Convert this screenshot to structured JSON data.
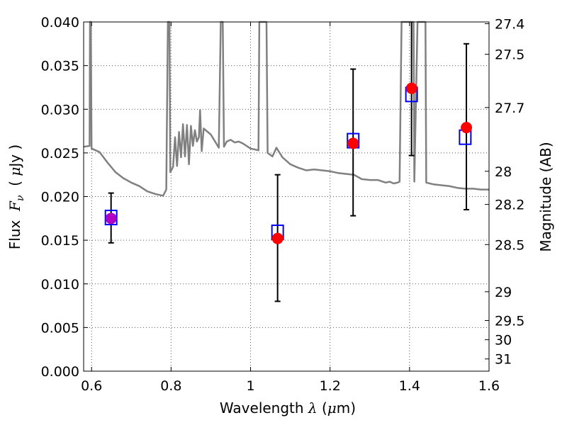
{
  "chart_data": {
    "type": "scatter",
    "xlabel": {
      "prefix": "Wavelength  ",
      "symbol": "λ",
      "unit_open": " (",
      "unit_symbol": "μ",
      "unit_close": "m)"
    },
    "ylabel": {
      "prefix": "Flux  ",
      "symbol": "F",
      "subscript": "ν",
      "unit_open": "  ( ",
      "unit_symbol": "μ",
      "unit_close": "Jy )"
    },
    "y2label": "Magnitude (AB)",
    "xlim": [
      0.58,
      1.6
    ],
    "ylim": [
      0.0,
      0.04
    ],
    "grid": true,
    "x_ticks": [
      {
        "value": 0.6,
        "label": "0.6"
      },
      {
        "value": 0.8,
        "label": "0.8"
      },
      {
        "value": 1.0,
        "label": "1"
      },
      {
        "value": 1.2,
        "label": "1.2"
      },
      {
        "value": 1.4,
        "label": "1.4"
      },
      {
        "value": 1.6,
        "label": "1.6"
      }
    ],
    "y_ticks": [
      {
        "value": 0.0,
        "label": "0.000"
      },
      {
        "value": 0.005,
        "label": "0.005"
      },
      {
        "value": 0.01,
        "label": "0.010"
      },
      {
        "value": 0.015,
        "label": "0.015"
      },
      {
        "value": 0.02,
        "label": "0.020"
      },
      {
        "value": 0.025,
        "label": "0.025"
      },
      {
        "value": 0.03,
        "label": "0.030"
      },
      {
        "value": 0.035,
        "label": "0.035"
      },
      {
        "value": 0.04,
        "label": "0.040"
      }
    ],
    "y2_ticks": [
      {
        "flux": 0.0398,
        "label": "27.4"
      },
      {
        "flux": 0.0363,
        "label": "27.5"
      },
      {
        "flux": 0.0302,
        "label": "27.7"
      },
      {
        "flux": 0.0229,
        "label": "28"
      },
      {
        "flux": 0.0191,
        "label": "28.2"
      },
      {
        "flux": 0.0145,
        "label": "28.5"
      },
      {
        "flux": 0.0091,
        "label": "29"
      },
      {
        "flux": 0.0058,
        "label": "29.5"
      },
      {
        "flux": 0.0036,
        "label": "30"
      },
      {
        "flux": 0.0014,
        "label": "31"
      }
    ],
    "colors": {
      "model": "#808080",
      "observed": "#ff0000",
      "model_flux": "#0000ff",
      "overlap": "#b000c0",
      "error": "#000000"
    },
    "series": [
      {
        "kind": "model_spectrum",
        "points": [
          [
            0.58,
            0.0257
          ],
          [
            0.595,
            0.0258
          ],
          [
            0.596,
            0.04
          ],
          [
            0.598,
            0.04
          ],
          [
            0.6,
            0.0255
          ],
          [
            0.62,
            0.0251
          ],
          [
            0.64,
            0.0239
          ],
          [
            0.66,
            0.0228
          ],
          [
            0.68,
            0.0221
          ],
          [
            0.7,
            0.0216
          ],
          [
            0.72,
            0.0212
          ],
          [
            0.74,
            0.0206
          ],
          [
            0.76,
            0.0203
          ],
          [
            0.78,
            0.0201
          ],
          [
            0.788,
            0.0208
          ],
          [
            0.792,
            0.04
          ],
          [
            0.796,
            0.04
          ],
          [
            0.798,
            0.0228
          ],
          [
            0.805,
            0.0234
          ],
          [
            0.81,
            0.0268
          ],
          [
            0.815,
            0.0235
          ],
          [
            0.82,
            0.0274
          ],
          [
            0.825,
            0.0245
          ],
          [
            0.83,
            0.0283
          ],
          [
            0.835,
            0.0246
          ],
          [
            0.84,
            0.0282
          ],
          [
            0.845,
            0.0237
          ],
          [
            0.85,
            0.0281
          ],
          [
            0.855,
            0.0258
          ],
          [
            0.86,
            0.0276
          ],
          [
            0.865,
            0.0263
          ],
          [
            0.87,
            0.0268
          ],
          [
            0.873,
            0.0299
          ],
          [
            0.877,
            0.0252
          ],
          [
            0.882,
            0.0278
          ],
          [
            0.9,
            0.0271
          ],
          [
            0.92,
            0.0256
          ],
          [
            0.925,
            0.04
          ],
          [
            0.93,
            0.04
          ],
          [
            0.933,
            0.0257
          ],
          [
            0.94,
            0.0263
          ],
          [
            0.95,
            0.0265
          ],
          [
            0.96,
            0.0262
          ],
          [
            0.97,
            0.0263
          ],
          [
            0.98,
            0.0261
          ],
          [
            0.99,
            0.0258
          ],
          [
            1.0,
            0.0255
          ],
          [
            1.02,
            0.0253
          ],
          [
            1.022,
            0.04
          ],
          [
            1.04,
            0.04
          ],
          [
            1.043,
            0.025
          ],
          [
            1.055,
            0.0246
          ],
          [
            1.065,
            0.0256
          ],
          [
            1.08,
            0.0245
          ],
          [
            1.1,
            0.0237
          ],
          [
            1.12,
            0.0233
          ],
          [
            1.14,
            0.023
          ],
          [
            1.16,
            0.0231
          ],
          [
            1.18,
            0.023
          ],
          [
            1.2,
            0.0229
          ],
          [
            1.22,
            0.0227
          ],
          [
            1.24,
            0.0226
          ],
          [
            1.26,
            0.0225
          ],
          [
            1.28,
            0.022
          ],
          [
            1.3,
            0.0219
          ],
          [
            1.32,
            0.0219
          ],
          [
            1.34,
            0.0216
          ],
          [
            1.35,
            0.0217
          ],
          [
            1.36,
            0.0215
          ],
          [
            1.37,
            0.0216
          ],
          [
            1.375,
            0.0217
          ],
          [
            1.38,
            0.04
          ],
          [
            1.41,
            0.04
          ],
          [
            1.412,
            0.0217
          ],
          [
            1.42,
            0.04
          ],
          [
            1.44,
            0.04
          ],
          [
            1.442,
            0.0216
          ],
          [
            1.46,
            0.0214
          ],
          [
            1.48,
            0.0213
          ],
          [
            1.5,
            0.0212
          ],
          [
            1.52,
            0.021
          ],
          [
            1.54,
            0.0209
          ],
          [
            1.56,
            0.0209
          ],
          [
            1.58,
            0.0208
          ],
          [
            1.6,
            0.0208
          ]
        ]
      },
      {
        "kind": "model_flux",
        "points": [
          {
            "x": 0.649,
            "y": 0.0176
          },
          {
            "x": 1.068,
            "y": 0.0159
          },
          {
            "x": 1.258,
            "y": 0.0264
          },
          {
            "x": 1.405,
            "y": 0.0317
          },
          {
            "x": 1.54,
            "y": 0.0268
          }
        ]
      },
      {
        "kind": "observed",
        "points": [
          {
            "x": 0.649,
            "y": 0.0175,
            "err_low": 0.0147,
            "err_high": 0.0204
          },
          {
            "x": 1.068,
            "y": 0.0152,
            "err_low": 0.008,
            "err_high": 0.0225
          },
          {
            "x": 1.258,
            "y": 0.0261,
            "err_low": 0.0178,
            "err_high": 0.0346
          },
          {
            "x": 1.405,
            "y": 0.0324,
            "err_low": 0.0247,
            "err_high": 0.04
          },
          {
            "x": 1.543,
            "y": 0.0279,
            "err_low": 0.0185,
            "err_high": 0.0375
          }
        ]
      }
    ]
  }
}
